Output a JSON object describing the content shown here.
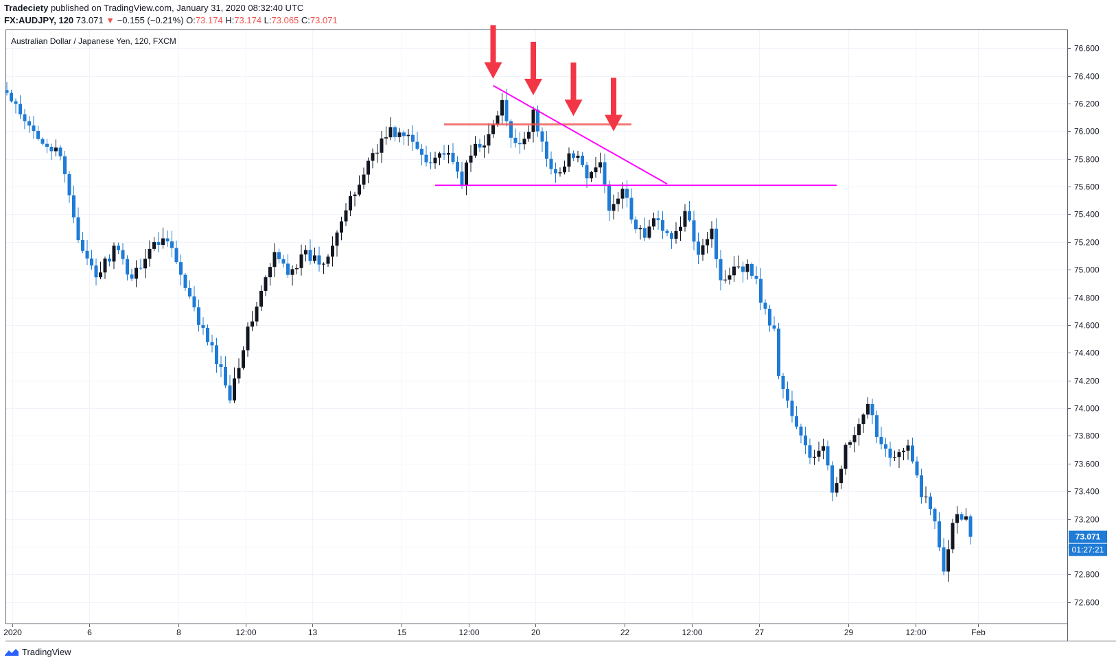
{
  "header": {
    "publisher": "Tradeciety",
    "published_text": " published on TradingView.com, January 31, 2020 08:32:40 UTC",
    "symbol_line": "FX:AUDJPY, 120",
    "last": "73.071",
    "change_arrow": "▼",
    "change": "−0.155 (−0.21%)",
    "o_label": "O:",
    "o_val": "73.174",
    "h_label": "H:",
    "h_val": "73.174",
    "l_label": "L:",
    "l_val": "73.065",
    "c_label": "C:",
    "c_val": "73.071"
  },
  "chart_title": "Australian Dollar / Japanese Yen, 120, FXCM",
  "price_badge": "73.071",
  "timer_badge": "01:27:21",
  "footer": {
    "brand": "TradingView",
    "brand_icon": "tradingview-logo-icon"
  },
  "colors": {
    "up": "#131722",
    "down": "#1e7bd6",
    "price_badge": "#1e7bd6",
    "pink": "#ff00ff",
    "red_arrow": "#f23645",
    "resistance": "#ef5350"
  },
  "chart_data": {
    "type": "candlestick",
    "title": "Australian Dollar / Japanese Yen, 120, FXCM",
    "ylim": [
      72.45,
      76.73
    ],
    "y_ticks": [
      "76.600",
      "76.400",
      "76.200",
      "76.000",
      "75.800",
      "75.600",
      "75.400",
      "75.200",
      "75.000",
      "74.800",
      "74.600",
      "74.400",
      "74.200",
      "74.000",
      "73.800",
      "73.600",
      "73.400",
      "73.200",
      "73.000",
      "72.800",
      "72.600"
    ],
    "x_ticks": [
      "2020",
      "6",
      "8",
      "12:00",
      "13",
      "15",
      "12:00",
      "20",
      "22",
      "12:00",
      "27",
      "29",
      "12:00",
      "Feb"
    ],
    "grid": true,
    "last_price": 73.071,
    "anchors": [
      {
        "t": 0,
        "p": 76.27
      },
      {
        "t": 4,
        "p": 76.05
      },
      {
        "t": 8,
        "p": 75.95
      },
      {
        "t": 12,
        "p": 75.8
      },
      {
        "t": 14,
        "p": 75.55
      },
      {
        "t": 17,
        "p": 75.1
      },
      {
        "t": 20,
        "p": 74.95
      },
      {
        "t": 24,
        "p": 75.15
      },
      {
        "t": 28,
        "p": 74.95
      },
      {
        "t": 32,
        "p": 75.15
      },
      {
        "t": 36,
        "p": 75.25
      },
      {
        "t": 40,
        "p": 74.85
      },
      {
        "t": 44,
        "p": 74.55
      },
      {
        "t": 47,
        "p": 74.35
      },
      {
        "t": 50,
        "p": 74.1
      },
      {
        "t": 53,
        "p": 74.45
      },
      {
        "t": 56,
        "p": 74.75
      },
      {
        "t": 60,
        "p": 75.1
      },
      {
        "t": 63,
        "p": 75.0
      },
      {
        "t": 67,
        "p": 75.1
      },
      {
        "t": 71,
        "p": 75.05
      },
      {
        "t": 74,
        "p": 75.3
      },
      {
        "t": 78,
        "p": 75.55
      },
      {
        "t": 82,
        "p": 75.85
      },
      {
        "t": 86,
        "p": 76.0
      },
      {
        "t": 90,
        "p": 75.95
      },
      {
        "t": 94,
        "p": 75.8
      },
      {
        "t": 98,
        "p": 75.85
      },
      {
        "t": 102,
        "p": 75.65
      },
      {
        "t": 105,
        "p": 75.9
      },
      {
        "t": 108,
        "p": 75.95
      },
      {
        "t": 111,
        "p": 76.2
      },
      {
        "t": 113,
        "p": 75.92
      },
      {
        "t": 116,
        "p": 75.95
      },
      {
        "t": 118,
        "p": 76.12
      },
      {
        "t": 121,
        "p": 75.8
      },
      {
        "t": 124,
        "p": 75.7
      },
      {
        "t": 127,
        "p": 75.85
      },
      {
        "t": 130,
        "p": 75.65
      },
      {
        "t": 133,
        "p": 75.78
      },
      {
        "t": 135,
        "p": 75.45
      },
      {
        "t": 138,
        "p": 75.6
      },
      {
        "t": 140,
        "p": 75.35
      },
      {
        "t": 143,
        "p": 75.25
      },
      {
        "t": 146,
        "p": 75.38
      },
      {
        "t": 149,
        "p": 75.2
      },
      {
        "t": 152,
        "p": 75.4
      },
      {
        "t": 155,
        "p": 75.15
      },
      {
        "t": 158,
        "p": 75.3
      },
      {
        "t": 160,
        "p": 74.9
      },
      {
        "t": 163,
        "p": 75.05
      },
      {
        "t": 167,
        "p": 75.0
      },
      {
        "t": 170,
        "p": 74.7
      },
      {
        "t": 172,
        "p": 74.55
      },
      {
        "t": 173,
        "p": 74.25
      },
      {
        "t": 175,
        "p": 74.05
      },
      {
        "t": 177,
        "p": 73.85
      },
      {
        "t": 180,
        "p": 73.65
      },
      {
        "t": 183,
        "p": 73.7
      },
      {
        "t": 185,
        "p": 73.4
      },
      {
        "t": 188,
        "p": 73.7
      },
      {
        "t": 191,
        "p": 73.85
      },
      {
        "t": 193,
        "p": 74.0
      },
      {
        "t": 196,
        "p": 73.75
      },
      {
        "t": 199,
        "p": 73.65
      },
      {
        "t": 202,
        "p": 73.7
      },
      {
        "t": 205,
        "p": 73.4
      },
      {
        "t": 208,
        "p": 73.2
      },
      {
        "t": 210,
        "p": 72.85
      },
      {
        "t": 212,
        "p": 73.2
      },
      {
        "t": 215,
        "p": 73.25
      },
      {
        "t": 216,
        "p": 73.071
      }
    ],
    "annotations": {
      "resistance_line": {
        "t1": 98,
        "t2": 140,
        "price": 76.05
      },
      "support_line": {
        "t1": 96,
        "t2": 186,
        "price": 75.61
      },
      "trendline": {
        "t1": 109,
        "p1": 76.33,
        "t2": 148,
        "p2": 75.62
      },
      "arrows_at": [
        {
          "t": 109,
          "p": 76.35
        },
        {
          "t": 118,
          "p": 76.23
        },
        {
          "t": 127,
          "p": 76.08
        },
        {
          "t": 136,
          "p": 75.97
        }
      ]
    }
  }
}
